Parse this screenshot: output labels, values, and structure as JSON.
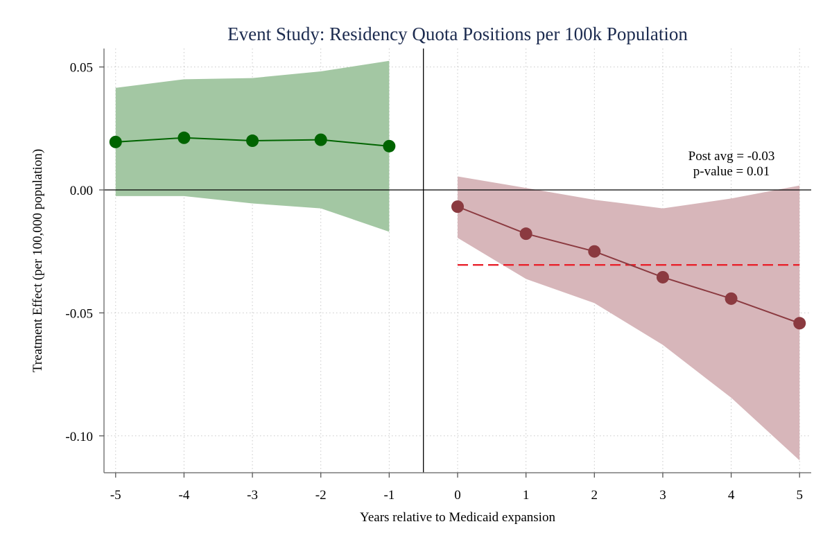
{
  "chart_data": {
    "type": "line",
    "title": "Event Study: Residency Quota Positions per 100k Population",
    "xlabel": "Years relative to Medicaid expansion",
    "ylabel": "Treatment Effect (per 100,000 population)",
    "xlim": [
      -5.17,
      5.17
    ],
    "ylim": [
      -0.115,
      0.0575
    ],
    "xticks": [
      -5,
      -4,
      -3,
      -2,
      -1,
      0,
      1,
      2,
      3,
      4,
      5
    ],
    "xtick_labels": [
      "-5",
      "-4",
      "-3",
      "-2",
      "-1",
      "0",
      "1",
      "2",
      "3",
      "4",
      "5"
    ],
    "yticks": [
      0.05,
      0.0,
      -0.05,
      -0.1
    ],
    "ytick_labels": [
      "0.05",
      "0.00",
      "-0.05",
      "-0.10"
    ],
    "grid": true,
    "vertical_line_x": -0.5,
    "series": [
      {
        "x": [
          -5,
          -4,
          -3,
          -2,
          -1
        ],
        "values": [
          0.0195,
          0.0212,
          0.02,
          0.0204,
          0.0178
        ],
        "ci_lower": [
          -0.0025,
          -0.0025,
          -0.0055,
          -0.0075,
          -0.017
        ],
        "ci_upper": [
          0.0415,
          0.045,
          0.0455,
          0.0482,
          0.0525
        ],
        "color": "#006400",
        "band_color": "#a3c7a3"
      },
      {
        "x": [
          0,
          1,
          2,
          3,
          4,
          5
        ],
        "values": [
          -0.0068,
          -0.0178,
          -0.025,
          -0.0355,
          -0.0442,
          -0.0542
        ],
        "ci_lower": [
          -0.0195,
          -0.0362,
          -0.046,
          -0.063,
          -0.0845,
          -0.11
        ],
        "ci_upper": [
          0.0055,
          0.0008,
          -0.004,
          -0.0075,
          -0.0035,
          0.0018
        ],
        "color": "#8b3a40",
        "band_color": "#d7b6ba"
      }
    ],
    "post_avg_line": {
      "x_start": 0,
      "x_end": 5,
      "y": -0.0305,
      "color": "#e8212b"
    },
    "annotation": [
      "Post avg = -0.03",
      "p-value = 0.01"
    ],
    "title_color": "#1c2b4f"
  }
}
